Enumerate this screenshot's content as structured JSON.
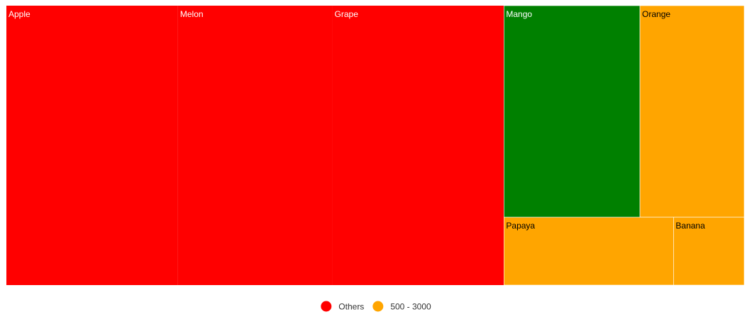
{
  "chart_data": {
    "type": "treemap",
    "items": [
      {
        "name": "Apple",
        "value": 5000,
        "group": "Others",
        "color": "#ff0000",
        "label_color": "#ffffff"
      },
      {
        "name": "Melon",
        "value": 4500,
        "group": "Others",
        "color": "#ff0000",
        "label_color": "#ffffff"
      },
      {
        "name": "Grape",
        "value": 5000,
        "group": "Others",
        "color": "#ff0000",
        "label_color": "#ffffff"
      },
      {
        "name": "Mango",
        "value": 3000,
        "group": "Mango",
        "color": "#008000",
        "label_color": "#ffffff"
      },
      {
        "name": "Orange",
        "value": 2300,
        "group": "500 - 3000",
        "color": "#ffa500",
        "label_color": "#000000"
      },
      {
        "name": "Papaya",
        "value": 1200,
        "group": "500 - 3000",
        "color": "#ffa500",
        "label_color": "#000000"
      },
      {
        "name": "Banana",
        "value": 500,
        "group": "500 - 3000",
        "color": "#ffa500",
        "label_color": "#000000"
      }
    ],
    "legend": {
      "position": "bottom",
      "items": [
        {
          "label": "Others",
          "color": "#ff0000"
        },
        {
          "label": "500 - 3000",
          "color": "#ffa500"
        }
      ]
    }
  }
}
